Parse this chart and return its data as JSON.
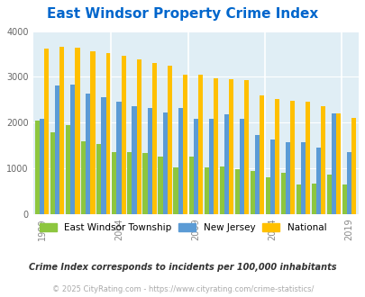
{
  "title": "East Windsor Property Crime Index",
  "title_color": "#0066cc",
  "years": [
    1999,
    2000,
    2001,
    2002,
    2003,
    2004,
    2005,
    2006,
    2007,
    2008,
    2009,
    2010,
    2011,
    2012,
    2013,
    2014,
    2015,
    2016,
    2017,
    2018,
    2019,
    2020
  ],
  "east_windsor": [
    2050,
    1780,
    1950,
    1580,
    1520,
    1350,
    1360,
    1330,
    1250,
    1020,
    1260,
    1010,
    1040,
    970,
    930,
    810,
    890,
    640,
    660,
    850,
    640,
    0
  ],
  "new_jersey": [
    2080,
    2820,
    2840,
    2640,
    2560,
    2460,
    2350,
    2310,
    2220,
    2310,
    2090,
    2090,
    2170,
    2080,
    1730,
    1630,
    1570,
    1570,
    1450,
    2190,
    1360,
    0
  ],
  "national": [
    3620,
    3650,
    3640,
    3560,
    3520,
    3460,
    3380,
    3310,
    3240,
    3050,
    3050,
    2960,
    2940,
    2920,
    2600,
    2510,
    2480,
    2450,
    2360,
    2190,
    2110,
    0
  ],
  "east_windsor_color": "#8dc63f",
  "new_jersey_color": "#5b9bd5",
  "national_color": "#ffc000",
  "plot_bg_color": "#e0eef5",
  "ylim": [
    0,
    4000
  ],
  "yticks": [
    0,
    1000,
    2000,
    3000,
    4000
  ],
  "xtick_years": [
    1999,
    2004,
    2009,
    2014,
    2019
  ],
  "legend_labels": [
    "East Windsor Township",
    "New Jersey",
    "National"
  ],
  "footnote1": "Crime Index corresponds to incidents per 100,000 inhabitants",
  "footnote2": "© 2025 CityRating.com - https://www.cityrating.com/crime-statistics/",
  "footnote1_color": "#333333",
  "footnote2_color": "#aaaaaa"
}
